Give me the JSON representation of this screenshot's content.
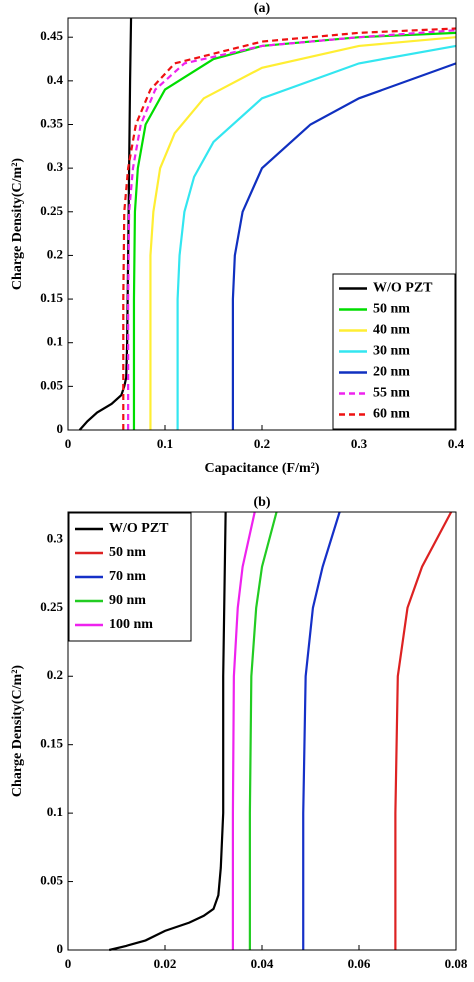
{
  "chart_data": [
    {
      "type": "line",
      "title": "(a)",
      "xlabel": "Capacitance (F/m²)",
      "ylabel": "Charge Density(C/m²)",
      "xlim": [
        0,
        0.4
      ],
      "ylim": [
        0,
        0.472
      ],
      "xticks": [
        0,
        0.1,
        0.2,
        0.3,
        0.4
      ],
      "yticks": [
        0,
        0.05,
        0.1,
        0.15,
        0.2,
        0.25,
        0.3,
        0.35,
        0.4,
        0.45
      ],
      "legend": "lower right",
      "series": [
        {
          "name": "W/O PZT",
          "color": "#000000",
          "linestyle": "solid",
          "x": [
            0.012,
            0.02,
            0.03,
            0.045,
            0.055,
            0.058,
            0.06,
            0.061,
            0.062,
            0.063,
            0.064,
            0.065
          ],
          "values": [
            0,
            0.01,
            0.02,
            0.03,
            0.04,
            0.05,
            0.06,
            0.1,
            0.2,
            0.3,
            0.4,
            0.472
          ]
        },
        {
          "name": "50 nm",
          "color": "#00dd00",
          "linestyle": "solid",
          "x": [
            0.068,
            0.068,
            0.069,
            0.072,
            0.08,
            0.1,
            0.15,
            0.2,
            0.3,
            0.4
          ],
          "values": [
            0,
            0.15,
            0.25,
            0.3,
            0.35,
            0.39,
            0.425,
            0.44,
            0.45,
            0.455
          ]
        },
        {
          "name": "40 nm",
          "color": "#ffee33",
          "linestyle": "solid",
          "x": [
            0.085,
            0.085,
            0.088,
            0.095,
            0.11,
            0.14,
            0.2,
            0.3,
            0.4
          ],
          "values": [
            0,
            0.2,
            0.25,
            0.3,
            0.34,
            0.38,
            0.415,
            0.44,
            0.45
          ]
        },
        {
          "name": "30 nm",
          "color": "#33e6f0",
          "linestyle": "solid",
          "x": [
            0.113,
            0.113,
            0.115,
            0.12,
            0.13,
            0.15,
            0.2,
            0.3,
            0.4
          ],
          "values": [
            0,
            0.15,
            0.2,
            0.25,
            0.29,
            0.33,
            0.38,
            0.42,
            0.44
          ]
        },
        {
          "name": "20 nm",
          "color": "#1030c0",
          "linestyle": "solid",
          "x": [
            0.17,
            0.17,
            0.172,
            0.18,
            0.2,
            0.25,
            0.3,
            0.4
          ],
          "values": [
            0,
            0.15,
            0.2,
            0.25,
            0.3,
            0.35,
            0.38,
            0.42
          ]
        },
        {
          "name": "55 nm",
          "color": "#ee22ee",
          "linestyle": "dashed",
          "x": [
            0.062,
            0.062,
            0.063,
            0.067,
            0.075,
            0.09,
            0.12,
            0.2,
            0.3,
            0.4
          ],
          "values": [
            0,
            0.15,
            0.25,
            0.3,
            0.35,
            0.39,
            0.42,
            0.44,
            0.45,
            0.458
          ]
        },
        {
          "name": "60 nm",
          "color": "#ee1111",
          "linestyle": "dashed",
          "x": [
            0.057,
            0.057,
            0.058,
            0.062,
            0.07,
            0.085,
            0.11,
            0.2,
            0.3,
            0.4
          ],
          "values": [
            0,
            0.15,
            0.25,
            0.3,
            0.35,
            0.39,
            0.42,
            0.445,
            0.455,
            0.46
          ]
        }
      ]
    },
    {
      "type": "line",
      "title": "(b)",
      "xlabel": "Capacitance (F/m²)",
      "ylabel": "Charge Density(C/m²)",
      "xlim": [
        0,
        0.08
      ],
      "ylim": [
        0,
        0.32
      ],
      "xticks": [
        0,
        0.02,
        0.04,
        0.06,
        0.08
      ],
      "yticks": [
        0,
        0.05,
        0.1,
        0.15,
        0.2,
        0.25,
        0.3
      ],
      "legend": "upper left",
      "series": [
        {
          "name": "W/O PZT",
          "color": "#000000",
          "linestyle": "solid",
          "x": [
            0.0085,
            0.012,
            0.016,
            0.02,
            0.025,
            0.028,
            0.03,
            0.031,
            0.0315,
            0.032,
            0.032,
            0.0325
          ],
          "values": [
            0,
            0.003,
            0.007,
            0.014,
            0.02,
            0.025,
            0.03,
            0.04,
            0.06,
            0.1,
            0.2,
            0.32
          ]
        },
        {
          "name": "50 nm",
          "color": "#dd2222",
          "linestyle": "solid",
          "x": [
            0.0675,
            0.0675,
            0.068,
            0.07,
            0.073,
            0.076,
            0.079
          ],
          "values": [
            0,
            0.1,
            0.2,
            0.25,
            0.28,
            0.3,
            0.32
          ]
        },
        {
          "name": "70 nm",
          "color": "#1530c8",
          "linestyle": "solid",
          "x": [
            0.0485,
            0.0485,
            0.049,
            0.0505,
            0.0525,
            0.056
          ],
          "values": [
            0,
            0.1,
            0.2,
            0.25,
            0.28,
            0.32
          ]
        },
        {
          "name": "90 nm",
          "color": "#22cc22",
          "linestyle": "solid",
          "x": [
            0.0375,
            0.0375,
            0.0378,
            0.0388,
            0.04,
            0.043
          ],
          "values": [
            0,
            0.1,
            0.2,
            0.25,
            0.28,
            0.32
          ]
        },
        {
          "name": "100 nm",
          "color": "#ee22ee",
          "linestyle": "solid",
          "x": [
            0.034,
            0.034,
            0.0342,
            0.035,
            0.036,
            0.0385
          ],
          "values": [
            0,
            0.1,
            0.2,
            0.25,
            0.28,
            0.32
          ]
        }
      ]
    }
  ]
}
